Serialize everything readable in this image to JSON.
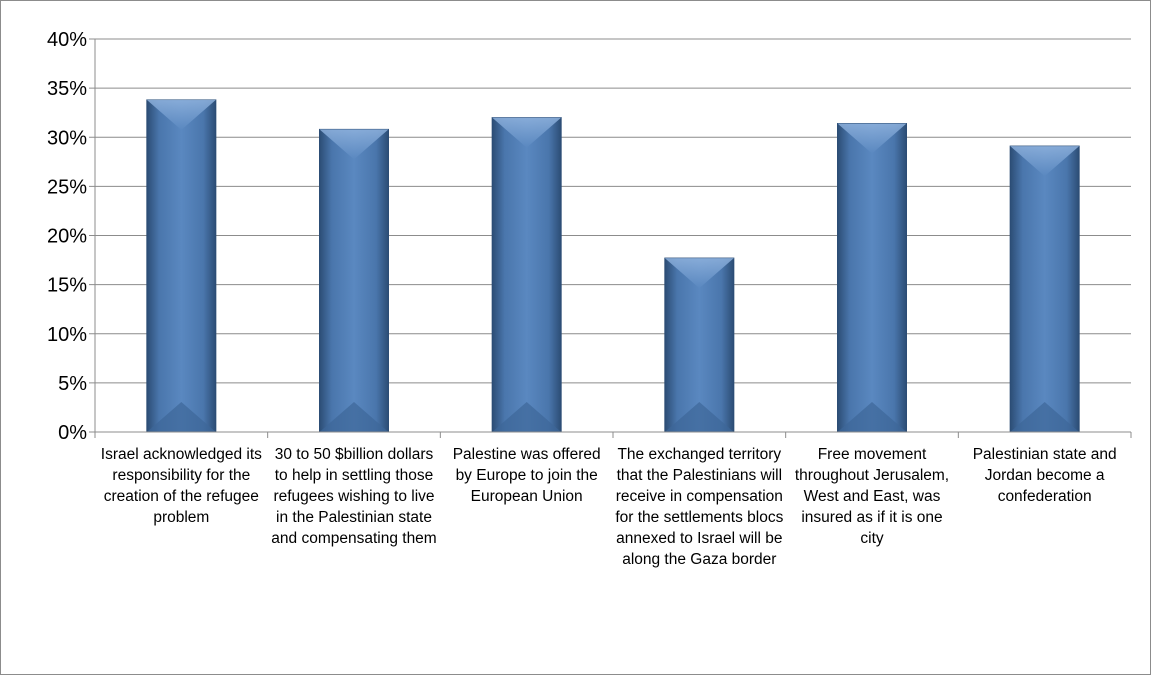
{
  "chart_data": {
    "type": "bar",
    "title": "",
    "xlabel": "",
    "ylabel": "",
    "ylim": [
      0,
      40
    ],
    "y_tick_step": 5,
    "y_tick_format": "percent",
    "grid": true,
    "legend": "none",
    "categories": [
      "Israel acknowledged its responsibility for the creation of the refugee problem",
      "30 to 50 $billion dollars to help in settling those refugees wishing to live in the Palestinian state and compensating them",
      "Palestine was offered by Europe to join the European Union",
      "The exchanged territory that the Palestinians will receive in compensation for the settlements blocs annexed to Israel will be along the Gaza border",
      "Free movement throughout Jerusalem, West and East, was insured as if it is one city",
      "Palestinian state and Jordan become a confederation"
    ],
    "values": [
      33.8,
      30.8,
      32.0,
      17.7,
      31.4,
      29.1
    ],
    "bar_color": "#4f81bd"
  }
}
